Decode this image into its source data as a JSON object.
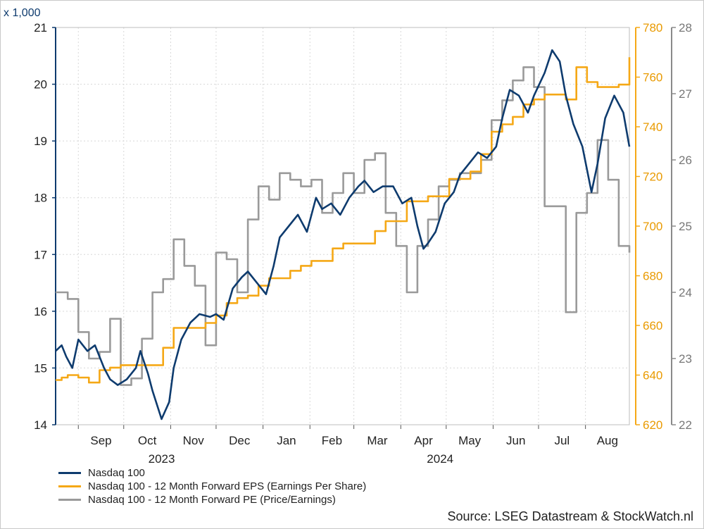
{
  "chart_data": {
    "type": "line",
    "left_axis": {
      "label": "x 1,000",
      "min": 14,
      "max": 21,
      "ticks": [
        "14",
        "15",
        "16",
        "17",
        "18",
        "19",
        "20",
        "21"
      ]
    },
    "right_axis_eps": {
      "min": 620,
      "max": 780,
      "ticks": [
        "620",
        "640",
        "660",
        "680",
        "700",
        "720",
        "740",
        "760",
        "780"
      ]
    },
    "right_axis_pe": {
      "min": 22,
      "max": 28,
      "ticks": [
        "22",
        "23",
        "24",
        "25",
        "26",
        "27",
        "28"
      ]
    },
    "x_months": [
      "Sep",
      "Oct",
      "Nov",
      "Dec",
      "Jan",
      "Feb",
      "Mar",
      "Apr",
      "May",
      "Jun",
      "Jul",
      "Aug"
    ],
    "x_years": [
      "2023",
      "2024"
    ],
    "x_range": [
      "2023-08-17",
      "2024-08-30"
    ],
    "grid": true,
    "series": [
      {
        "name": "Nasdaq 100",
        "axis": "left",
        "color": "#0e3b6e",
        "x": [
          "2023-08-17",
          "2023-08-21",
          "2023-08-24",
          "2023-08-28",
          "2023-09-01",
          "2023-09-07",
          "2023-09-12",
          "2023-09-18",
          "2023-09-22",
          "2023-09-27",
          "2023-10-03",
          "2023-10-09",
          "2023-10-12",
          "2023-10-17",
          "2023-10-20",
          "2023-10-26",
          "2023-10-31",
          "2023-11-03",
          "2023-11-08",
          "2023-11-14",
          "2023-11-20",
          "2023-11-27",
          "2023-12-01",
          "2023-12-06",
          "2023-12-12",
          "2023-12-18",
          "2023-12-22",
          "2023-12-28",
          "2024-01-03",
          "2024-01-08",
          "2024-01-12",
          "2024-01-18",
          "2024-01-24",
          "2024-01-30",
          "2024-02-05",
          "2024-02-09",
          "2024-02-15",
          "2024-02-21",
          "2024-02-27",
          "2024-03-04",
          "2024-03-08",
          "2024-03-14",
          "2024-03-20",
          "2024-03-27",
          "2024-04-02",
          "2024-04-08",
          "2024-04-12",
          "2024-04-16",
          "2024-04-19",
          "2024-04-24",
          "2024-04-30",
          "2024-05-06",
          "2024-05-10",
          "2024-05-16",
          "2024-05-22",
          "2024-05-28",
          "2024-06-03",
          "2024-06-07",
          "2024-06-12",
          "2024-06-18",
          "2024-06-24",
          "2024-06-28",
          "2024-07-05",
          "2024-07-10",
          "2024-07-15",
          "2024-07-19",
          "2024-07-24",
          "2024-07-30",
          "2024-08-05",
          "2024-08-09",
          "2024-08-14",
          "2024-08-20",
          "2024-08-26",
          "2024-08-30"
        ],
        "values": [
          15.3,
          15.4,
          15.2,
          15.0,
          15.5,
          15.3,
          15.4,
          15.0,
          14.8,
          14.7,
          14.8,
          15.0,
          15.3,
          14.9,
          14.6,
          14.1,
          14.4,
          15.0,
          15.5,
          15.8,
          15.95,
          15.9,
          15.95,
          15.85,
          16.4,
          16.6,
          16.7,
          16.5,
          16.3,
          16.8,
          17.3,
          17.5,
          17.7,
          17.4,
          18.0,
          17.8,
          17.9,
          17.7,
          18.0,
          18.2,
          18.3,
          18.1,
          18.2,
          18.2,
          17.9,
          18.0,
          17.5,
          17.1,
          17.2,
          17.4,
          17.9,
          18.1,
          18.4,
          18.6,
          18.8,
          18.7,
          18.9,
          19.4,
          19.9,
          19.8,
          19.5,
          19.8,
          20.2,
          20.6,
          20.4,
          19.8,
          19.3,
          18.9,
          18.1,
          18.6,
          19.4,
          19.8,
          19.5,
          18.9
        ]
      },
      {
        "name": "Nasdaq 100 - 12 Month Forward EPS (Earnings Per Share)",
        "axis": "right_eps",
        "color": "#f5a816",
        "x": [
          "2023-08-17",
          "2023-08-21",
          "2023-08-25",
          "2023-08-29",
          "2023-09-01",
          "2023-09-08",
          "2023-09-15",
          "2023-09-22",
          "2023-09-29",
          "2023-10-13",
          "2023-10-27",
          "2023-11-03",
          "2023-11-24",
          "2023-12-01",
          "2023-12-08",
          "2023-12-15",
          "2023-12-22",
          "2023-12-29",
          "2024-01-05",
          "2024-01-19",
          "2024-01-26",
          "2024-02-02",
          "2024-02-16",
          "2024-02-23",
          "2024-03-15",
          "2024-03-22",
          "2024-04-05",
          "2024-04-19",
          "2024-05-03",
          "2024-05-17",
          "2024-05-24",
          "2024-05-31",
          "2024-06-07",
          "2024-06-14",
          "2024-06-21",
          "2024-06-28",
          "2024-07-05",
          "2024-07-19",
          "2024-07-26",
          "2024-08-02",
          "2024-08-09",
          "2024-08-23",
          "2024-08-30"
        ],
        "values": [
          638,
          639,
          640,
          640,
          639,
          637,
          642,
          643,
          644,
          644,
          651,
          659,
          661,
          664,
          669,
          671,
          672,
          676,
          679,
          682,
          684,
          686,
          691,
          693,
          698,
          702,
          710,
          712,
          719,
          722,
          729,
          738,
          741,
          744,
          749,
          751,
          753,
          751,
          764,
          758,
          756,
          757,
          768
        ]
      },
      {
        "name": "Nasdaq 100 - 12 Month Forward PE (Price/Earnings)",
        "axis": "right_pe",
        "color": "#9a9a9a",
        "x": [
          "2023-08-17",
          "2023-08-25",
          "2023-09-01",
          "2023-09-08",
          "2023-09-15",
          "2023-09-22",
          "2023-09-29",
          "2023-10-06",
          "2023-10-13",
          "2023-10-20",
          "2023-10-27",
          "2023-11-03",
          "2023-11-10",
          "2023-11-17",
          "2023-11-24",
          "2023-12-01",
          "2023-12-08",
          "2023-12-15",
          "2023-12-22",
          "2023-12-29",
          "2024-01-05",
          "2024-01-12",
          "2024-01-19",
          "2024-01-26",
          "2024-02-02",
          "2024-02-09",
          "2024-02-16",
          "2024-02-23",
          "2024-03-01",
          "2024-03-08",
          "2024-03-15",
          "2024-03-22",
          "2024-03-29",
          "2024-04-05",
          "2024-04-12",
          "2024-04-19",
          "2024-04-26",
          "2024-05-03",
          "2024-05-10",
          "2024-05-17",
          "2024-05-24",
          "2024-05-31",
          "2024-06-07",
          "2024-06-14",
          "2024-06-21",
          "2024-06-28",
          "2024-07-05",
          "2024-07-12",
          "2024-07-19",
          "2024-07-26",
          "2024-08-02",
          "2024-08-09",
          "2024-08-16",
          "2024-08-23",
          "2024-08-30"
        ],
        "values": [
          24.0,
          23.9,
          23.4,
          23.0,
          23.1,
          23.6,
          22.6,
          22.7,
          23.3,
          24.0,
          24.2,
          24.8,
          24.4,
          24.1,
          23.2,
          24.6,
          24.5,
          24.0,
          25.1,
          25.6,
          25.4,
          25.8,
          25.7,
          25.6,
          25.7,
          25.2,
          25.5,
          25.8,
          25.5,
          26.0,
          26.1,
          25.2,
          24.7,
          24.0,
          24.7,
          25.1,
          25.6,
          25.7,
          25.8,
          25.8,
          26.0,
          26.6,
          26.9,
          27.2,
          27.4,
          27.1,
          25.3,
          25.3,
          23.7,
          25.2,
          25.5,
          26.3,
          25.7,
          24.7,
          24.6
        ]
      }
    ]
  },
  "legend": [
    {
      "label": "Nasdaq 100",
      "color": "#0e3b6e"
    },
    {
      "label": "Nasdaq 100 - 12 Month Forward EPS (Earnings Per Share)",
      "color": "#f5a816"
    },
    {
      "label": "Nasdaq 100 - 12 Month Forward PE (Price/Earnings)",
      "color": "#9a9a9a"
    }
  ],
  "source": "Source: LSEG Datastream & StockWatch.nl",
  "colors": {
    "left_axis": "#0e3b6e",
    "eps_axis": "#f5a816",
    "pe_axis": "#8a8a8a",
    "grid": "#d8d8d8"
  }
}
